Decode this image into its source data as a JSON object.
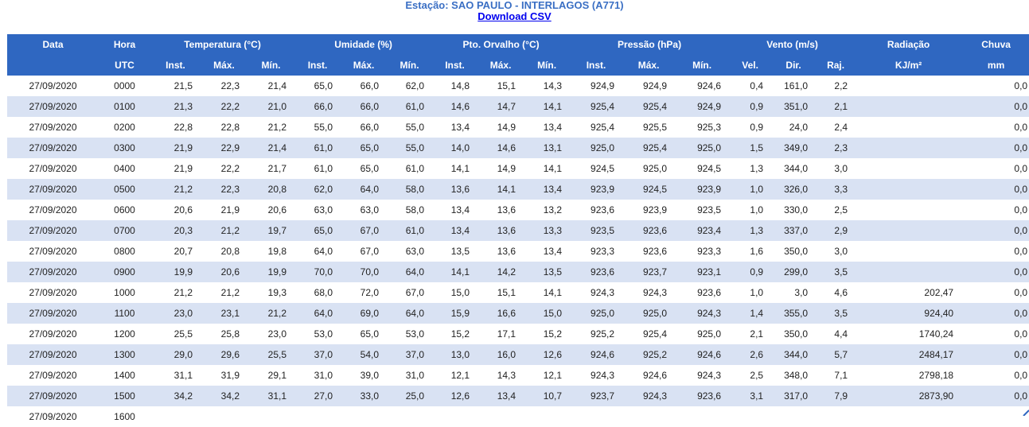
{
  "station_title": "Estação: SAO PAULO - INTERLAGOS (A771)",
  "download_label": "Download CSV",
  "headers": {
    "data": "Data",
    "hora": "Hora",
    "utc": "UTC",
    "temperatura": "Temperatura (°C)",
    "umidade": "Umidade (%)",
    "orvalho": "Pto. Orvalho (°C)",
    "pressao": "Pressão (hPa)",
    "vento": "Vento (m/s)",
    "radiacao": "Radiação",
    "radiacao_unit": "KJ/m²",
    "chuva": "Chuva",
    "chuva_unit": "mm",
    "inst": "Inst.",
    "max": "Máx.",
    "min": "Mín.",
    "vel": "Vel.",
    "dir": "Dir.",
    "raj": "Raj."
  },
  "rows": [
    [
      "27/09/2020",
      "0000",
      "21,5",
      "22,3",
      "21,4",
      "65,0",
      "66,0",
      "62,0",
      "14,8",
      "15,1",
      "14,3",
      "924,9",
      "924,9",
      "924,6",
      "0,4",
      "161,0",
      "2,2",
      "",
      "0,0"
    ],
    [
      "27/09/2020",
      "0100",
      "21,3",
      "22,2",
      "21,0",
      "66,0",
      "66,0",
      "61,0",
      "14,6",
      "14,7",
      "14,1",
      "925,4",
      "925,4",
      "924,9",
      "0,9",
      "351,0",
      "2,1",
      "",
      "0,0"
    ],
    [
      "27/09/2020",
      "0200",
      "22,8",
      "22,8",
      "21,2",
      "55,0",
      "66,0",
      "55,0",
      "13,4",
      "14,9",
      "13,4",
      "925,4",
      "925,5",
      "925,3",
      "0,9",
      "24,0",
      "2,4",
      "",
      "0,0"
    ],
    [
      "27/09/2020",
      "0300",
      "21,9",
      "22,9",
      "21,4",
      "61,0",
      "65,0",
      "55,0",
      "14,0",
      "14,6",
      "13,1",
      "925,0",
      "925,4",
      "925,0",
      "1,5",
      "349,0",
      "2,3",
      "",
      "0,0"
    ],
    [
      "27/09/2020",
      "0400",
      "21,9",
      "22,2",
      "21,7",
      "61,0",
      "65,0",
      "61,0",
      "14,1",
      "14,9",
      "14,1",
      "924,5",
      "925,0",
      "924,5",
      "1,3",
      "344,0",
      "3,0",
      "",
      "0,0"
    ],
    [
      "27/09/2020",
      "0500",
      "21,2",
      "22,3",
      "20,8",
      "62,0",
      "64,0",
      "58,0",
      "13,6",
      "14,1",
      "13,4",
      "923,9",
      "924,5",
      "923,9",
      "1,0",
      "326,0",
      "3,3",
      "",
      "0,0"
    ],
    [
      "27/09/2020",
      "0600",
      "20,6",
      "21,9",
      "20,6",
      "63,0",
      "63,0",
      "58,0",
      "13,4",
      "13,6",
      "13,2",
      "923,6",
      "923,9",
      "923,5",
      "1,0",
      "330,0",
      "2,5",
      "",
      "0,0"
    ],
    [
      "27/09/2020",
      "0700",
      "20,3",
      "21,2",
      "19,7",
      "65,0",
      "67,0",
      "61,0",
      "13,4",
      "13,6",
      "13,3",
      "923,5",
      "923,6",
      "923,4",
      "1,3",
      "337,0",
      "2,9",
      "",
      "0,0"
    ],
    [
      "27/09/2020",
      "0800",
      "20,7",
      "20,8",
      "19,8",
      "64,0",
      "67,0",
      "63,0",
      "13,5",
      "13,6",
      "13,4",
      "923,3",
      "923,6",
      "923,3",
      "1,6",
      "350,0",
      "3,0",
      "",
      "0,0"
    ],
    [
      "27/09/2020",
      "0900",
      "19,9",
      "20,6",
      "19,9",
      "70,0",
      "70,0",
      "64,0",
      "14,1",
      "14,2",
      "13,5",
      "923,6",
      "923,7",
      "923,1",
      "0,9",
      "299,0",
      "3,5",
      "",
      "0,0"
    ],
    [
      "27/09/2020",
      "1000",
      "21,2",
      "21,2",
      "19,3",
      "68,0",
      "72,0",
      "67,0",
      "15,0",
      "15,1",
      "14,1",
      "924,3",
      "924,3",
      "923,6",
      "1,0",
      "3,0",
      "4,6",
      "202,47",
      "0,0"
    ],
    [
      "27/09/2020",
      "1100",
      "23,0",
      "23,1",
      "21,2",
      "64,0",
      "69,0",
      "64,0",
      "15,9",
      "16,6",
      "15,0",
      "925,0",
      "925,0",
      "924,3",
      "1,4",
      "355,0",
      "3,5",
      "924,40",
      "0,0"
    ],
    [
      "27/09/2020",
      "1200",
      "25,5",
      "25,8",
      "23,0",
      "53,0",
      "65,0",
      "53,0",
      "15,2",
      "17,1",
      "15,2",
      "925,2",
      "925,4",
      "925,0",
      "2,1",
      "350,0",
      "4,4",
      "1740,24",
      "0,0"
    ],
    [
      "27/09/2020",
      "1300",
      "29,0",
      "29,6",
      "25,5",
      "37,0",
      "54,0",
      "37,0",
      "13,0",
      "16,0",
      "12,6",
      "924,6",
      "925,2",
      "924,6",
      "2,6",
      "344,0",
      "5,7",
      "2484,17",
      "0,0"
    ],
    [
      "27/09/2020",
      "1400",
      "31,1",
      "31,9",
      "29,1",
      "31,0",
      "39,0",
      "31,0",
      "12,1",
      "14,3",
      "12,1",
      "924,3",
      "924,6",
      "924,3",
      "2,5",
      "348,0",
      "7,1",
      "2798,18",
      "0,0"
    ],
    [
      "27/09/2020",
      "1500",
      "34,2",
      "34,2",
      "31,1",
      "27,0",
      "33,0",
      "25,0",
      "12,6",
      "13,4",
      "10,7",
      "923,7",
      "924,3",
      "923,6",
      "3,1",
      "317,0",
      "7,9",
      "2873,90",
      "0,0"
    ],
    [
      "27/09/2020",
      "1600",
      "",
      "",
      "",
      "",
      "",
      "",
      "",
      "",
      "",
      "",
      "",
      "",
      "",
      "",
      "",
      "",
      ""
    ]
  ]
}
